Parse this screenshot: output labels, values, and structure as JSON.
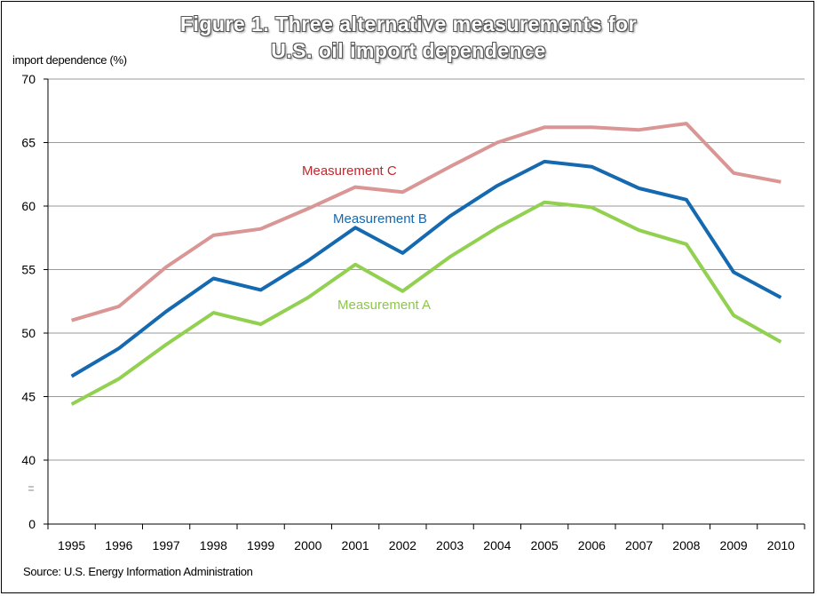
{
  "chart_data": {
    "type": "line",
    "title_line1": "Figure 1. Three alternative measurements  for",
    "title_line2": "U.S. oil import dependence",
    "ylabel": "import dependence (%)",
    "source": "Source: U.S. Energy Information Administration",
    "ylim": [
      40,
      70
    ],
    "yticks": [
      "70",
      "65",
      "60",
      "55",
      "50",
      "45",
      "40",
      "0"
    ],
    "y_axis_break": true,
    "grid": true,
    "categories": [
      "1995",
      "1996",
      "1997",
      "1998",
      "1999",
      "2000",
      "2001",
      "2002",
      "2003",
      "2004",
      "2005",
      "2006",
      "2007",
      "2008",
      "2009",
      "2010"
    ],
    "series": [
      {
        "name": "Measurement C",
        "color": "#d99694",
        "label_color": "#c0282d",
        "values": [
          51.0,
          52.1,
          55.2,
          57.7,
          58.2,
          59.8,
          61.5,
          61.1,
          63.1,
          65.0,
          66.2,
          66.2,
          66.0,
          66.5,
          62.6,
          61.9
        ]
      },
      {
        "name": "Measurement B",
        "color": "#1469b1",
        "label_color": "#1469b1",
        "values": [
          46.6,
          48.8,
          51.7,
          54.3,
          53.4,
          55.7,
          58.3,
          56.3,
          59.2,
          61.6,
          63.5,
          63.1,
          61.4,
          60.5,
          54.8,
          52.8
        ]
      },
      {
        "name": "Measurement A",
        "color": "#92d050",
        "label_color": "#8ec64a",
        "values": [
          44.4,
          46.4,
          49.1,
          51.6,
          50.7,
          52.8,
          55.4,
          53.3,
          56.0,
          58.3,
          60.3,
          59.9,
          58.1,
          57.0,
          51.4,
          49.3
        ]
      }
    ]
  }
}
